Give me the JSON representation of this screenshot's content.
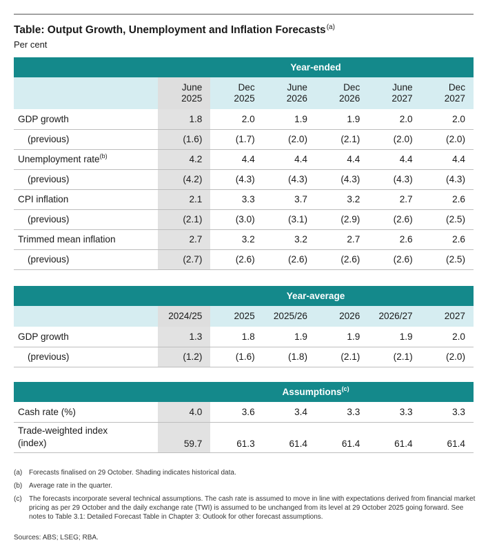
{
  "title": "Table: Output Growth, Unemployment and Inflation Forecasts",
  "title_note": "(a)",
  "subtitle": "Per cent",
  "colors": {
    "band": "#14898b",
    "header": "#d6edf1",
    "historical": "#e2e2e2"
  },
  "year_ended": {
    "band_label": "Year-ended",
    "headers": [
      [
        "June",
        "2025"
      ],
      [
        "Dec",
        "2025"
      ],
      [
        "June",
        "2026"
      ],
      [
        "Dec",
        "2026"
      ],
      [
        "June",
        "2027"
      ],
      [
        "Dec",
        "2027"
      ]
    ],
    "rows": [
      {
        "label": "GDP growth",
        "note": "",
        "values": [
          "1.8",
          "2.0",
          "1.9",
          "1.9",
          "2.0",
          "2.0"
        ]
      },
      {
        "label": "(previous)",
        "note": "",
        "values": [
          "(1.6)",
          "(1.7)",
          "(2.0)",
          "(2.1)",
          "(2.0)",
          "(2.0)"
        ]
      },
      {
        "label": "Unemployment rate",
        "note": "(b)",
        "values": [
          "4.2",
          "4.4",
          "4.4",
          "4.4",
          "4.4",
          "4.4"
        ]
      },
      {
        "label": "(previous)",
        "note": "",
        "values": [
          "(4.2)",
          "(4.3)",
          "(4.3)",
          "(4.3)",
          "(4.3)",
          "(4.3)"
        ]
      },
      {
        "label": "CPI inflation",
        "note": "",
        "values": [
          "2.1",
          "3.3",
          "3.7",
          "3.2",
          "2.7",
          "2.6"
        ]
      },
      {
        "label": "(previous)",
        "note": "",
        "values": [
          "(2.1)",
          "(3.0)",
          "(3.1)",
          "(2.9)",
          "(2.6)",
          "(2.5)"
        ]
      },
      {
        "label": "Trimmed mean inflation",
        "note": "",
        "values": [
          "2.7",
          "3.2",
          "3.2",
          "2.7",
          "2.6",
          "2.6"
        ]
      },
      {
        "label": "(previous)",
        "note": "",
        "values": [
          "(2.7)",
          "(2.6)",
          "(2.6)",
          "(2.6)",
          "(2.6)",
          "(2.5)"
        ]
      }
    ]
  },
  "year_average": {
    "band_label": "Year-average",
    "headers": [
      "2024/25",
      "2025",
      "2025/26",
      "2026",
      "2026/27",
      "2027"
    ],
    "rows": [
      {
        "label": "GDP growth",
        "values": [
          "1.3",
          "1.8",
          "1.9",
          "1.9",
          "1.9",
          "2.0"
        ]
      },
      {
        "label": "(previous)",
        "values": [
          "(1.2)",
          "(1.6)",
          "(1.8)",
          "(2.1)",
          "(2.1)",
          "(2.0)"
        ]
      }
    ]
  },
  "assumptions": {
    "band_label": "Assumptions",
    "band_note": "(c)",
    "rows": [
      {
        "label": "Cash rate (%)",
        "values": [
          "4.0",
          "3.6",
          "3.4",
          "3.3",
          "3.3",
          "3.3"
        ]
      },
      {
        "label_line1": "Trade-weighted index",
        "label_line2": "(index)",
        "values": [
          "59.7",
          "61.3",
          "61.4",
          "61.4",
          "61.4",
          "61.4"
        ]
      }
    ]
  },
  "notes": [
    {
      "label": "(a)",
      "text": "Forecasts finalised on 29 October. Shading indicates historical data."
    },
    {
      "label": "(b)",
      "text": "Average rate in the quarter."
    },
    {
      "label": "(c)",
      "text": "The forecasts incorporate several technical assumptions. The cash rate is assumed to move in line with expectations derived from financial market pricing as per 29 October and the daily exchange rate (TWI) is assumed to be unchanged from its level at 29 October 2025 going forward. See notes to Table 3.1: Detailed Forecast Table in Chapter 3: Outlook for other forecast assumptions."
    }
  ],
  "sources": "Sources: ABS; LSEG; RBA."
}
